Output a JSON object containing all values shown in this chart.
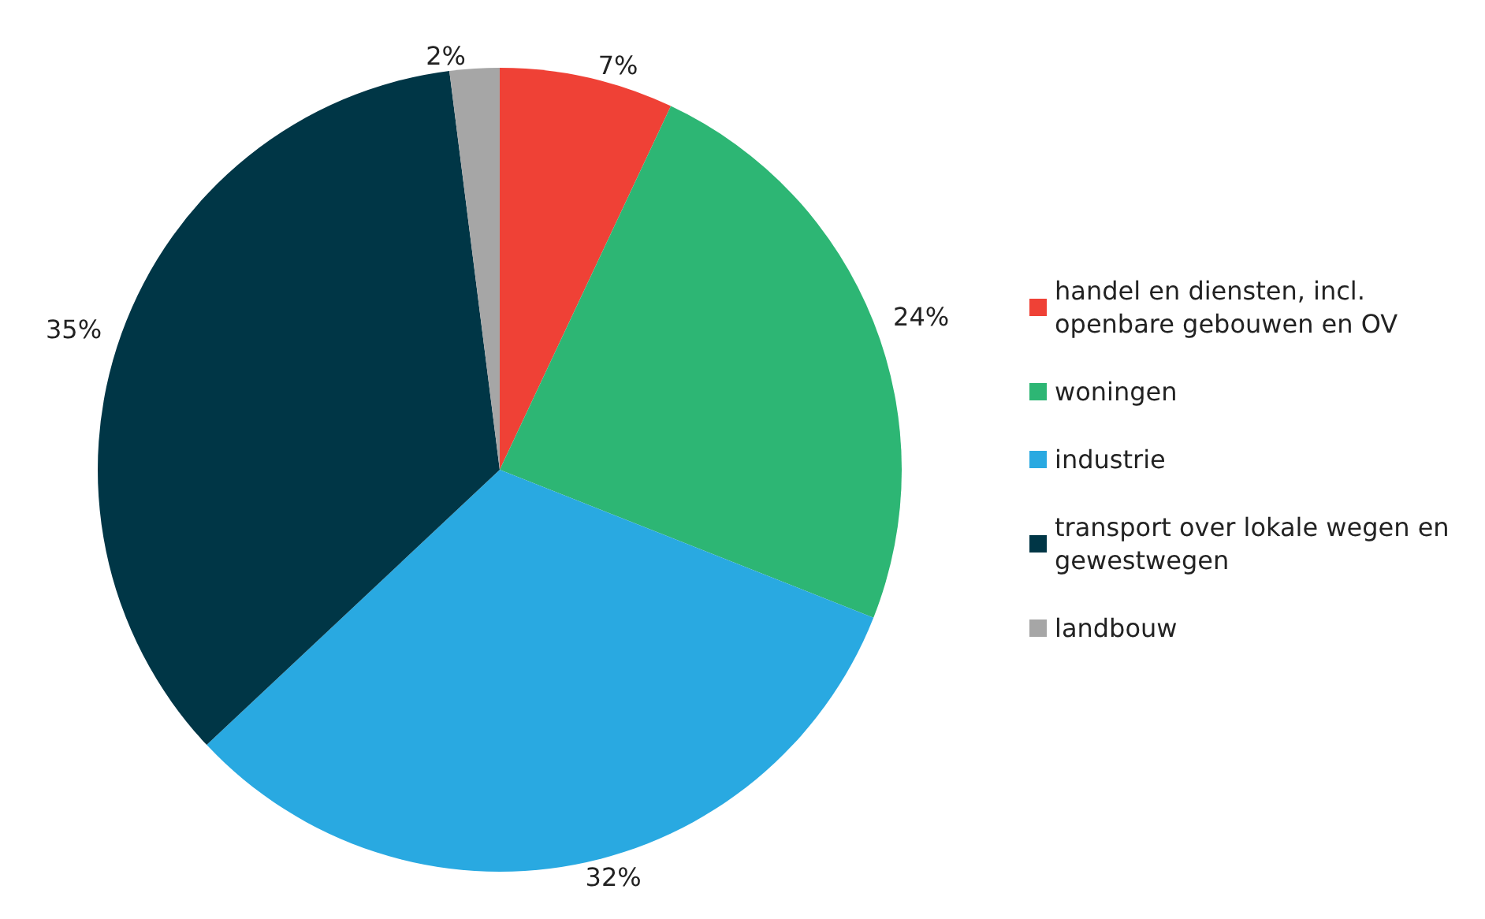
{
  "chart_data": {
    "type": "pie",
    "categories": [
      "handel en diensten, incl. openbare gebouwen en OV",
      "woningen",
      "industrie",
      "transport over lokale wegen en gewestwegen",
      "landbouw"
    ],
    "values": [
      7,
      24,
      32,
      35,
      2
    ],
    "value_labels": [
      "7%",
      "24%",
      "32%",
      "35%",
      "2%"
    ],
    "colors": [
      "#ef4136",
      "#2db674",
      "#29a9e1",
      "#003646",
      "#a6a6a6"
    ],
    "legend": "right"
  }
}
